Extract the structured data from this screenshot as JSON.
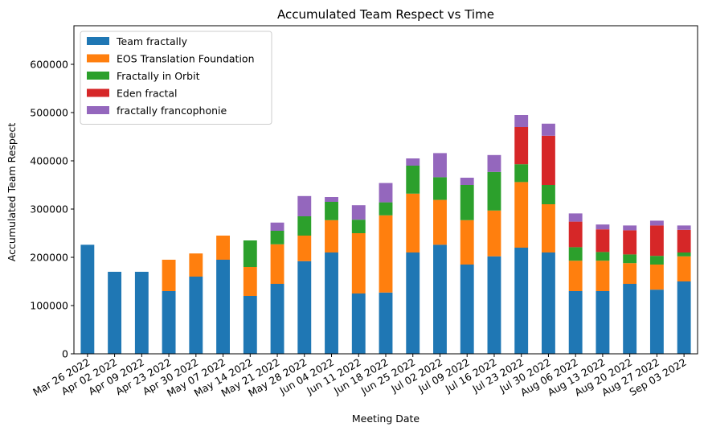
{
  "chart_data": {
    "type": "bar",
    "stacked": true,
    "title": "Accumulated Team Respect vs Time",
    "xlabel": "Meeting Date",
    "ylabel": "Accumulated Team Respect",
    "ylim": [
      0,
      680000
    ],
    "yticks": [
      0,
      100000,
      200000,
      300000,
      400000,
      500000,
      600000
    ],
    "grid": false,
    "legend_position": "top-left",
    "categories": [
      "Mar 26 2022",
      "Apr 02 2022",
      "Apr 09 2022",
      "Apr 23 2022",
      "Apr 30 2022",
      "May 07 2022",
      "May 14 2022",
      "May 21 2022",
      "May 28 2022",
      "Jun 04 2022",
      "Jun 11 2022",
      "Jun 18 2022",
      "Jun 25 2022",
      "Jul 02 2022",
      "Jul 09 2022",
      "Jul 16 2022",
      "Jul 23 2022",
      "Jul 30 2022",
      "Aug 06 2022",
      "Aug 13 2022",
      "Aug 20 2022",
      "Aug 27 2022",
      "Sep 03 2022"
    ],
    "series": [
      {
        "name": "Team fractally",
        "color": "#1f77b4",
        "values": [
          226000,
          170000,
          170000,
          130000,
          160000,
          195000,
          120000,
          145000,
          192000,
          210000,
          125000,
          127000,
          210000,
          226000,
          185000,
          202000,
          220000,
          210000,
          130000,
          130000,
          145000,
          133000,
          150000
        ]
      },
      {
        "name": "EOS Translation Foundation",
        "color": "#ff7f0e",
        "values": [
          0,
          0,
          0,
          65000,
          48000,
          50000,
          60000,
          82000,
          53000,
          67000,
          125000,
          160000,
          122000,
          93000,
          92000,
          95000,
          136000,
          100000,
          63000,
          63000,
          43000,
          52000,
          52000
        ]
      },
      {
        "name": "Fractally in Orbit",
        "color": "#2ca02c",
        "values": [
          0,
          0,
          0,
          0,
          0,
          0,
          55000,
          28000,
          40000,
          38000,
          28000,
          27000,
          58000,
          47000,
          73000,
          80000,
          37000,
          40000,
          28000,
          18000,
          18000,
          18000,
          8000
        ]
      },
      {
        "name": "Eden fractal",
        "color": "#d62728",
        "values": [
          0,
          0,
          0,
          0,
          0,
          0,
          0,
          0,
          0,
          0,
          0,
          0,
          0,
          0,
          0,
          0,
          77000,
          102000,
          53000,
          47000,
          50000,
          63000,
          47000
        ]
      },
      {
        "name": "fractally francophonie",
        "color": "#9467bd",
        "values": [
          0,
          0,
          0,
          0,
          0,
          0,
          0,
          17000,
          42000,
          10000,
          30000,
          40000,
          15000,
          50000,
          15000,
          35000,
          25000,
          25000,
          17000,
          10000,
          10000,
          10000,
          9000
        ]
      }
    ]
  }
}
